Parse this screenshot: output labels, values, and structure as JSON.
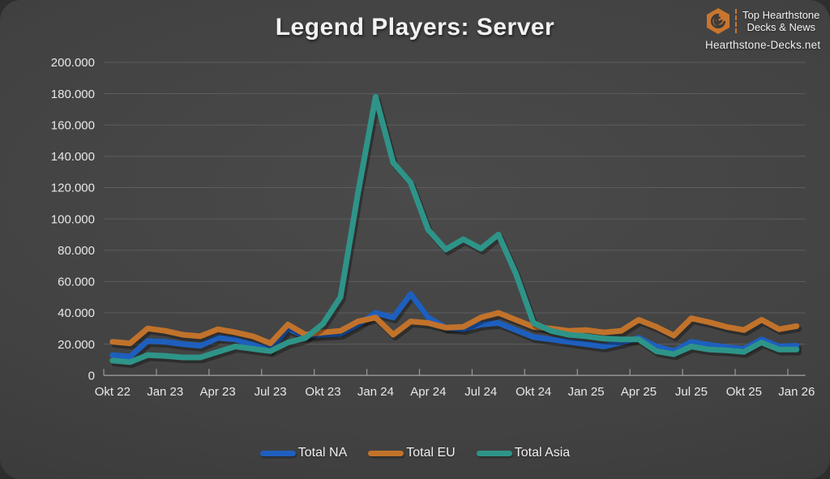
{
  "header": {
    "title": "Legend Players: Server",
    "logo": {
      "icon": "hearthstone-swirl-hexagon-icon",
      "line1": "Top Hearthstone",
      "line2": "Decks & News",
      "site": "Hearthstone-Decks.net",
      "accent": "#c9752e"
    }
  },
  "chart_data": {
    "type": "line",
    "title": "Legend Players: Server",
    "xlabel": "",
    "ylabel": "",
    "ylim": [
      0,
      200000
    ],
    "y_tick_step": 20000,
    "y_tick_labels": [
      "0",
      "20.000",
      "40.000",
      "60.000",
      "80.000",
      "100.000",
      "120.000",
      "140.000",
      "160.000",
      "180.000",
      "200.000"
    ],
    "x_tick_label_every": 3,
    "x_tick_labels_shown": [
      "Okt 22",
      "Jan 23",
      "Apr 23",
      "Jul 23",
      "Okt 23",
      "Jan 24",
      "Apr 24",
      "Jul 24",
      "Okt 24",
      "Jan 25",
      "Apr 25",
      "Jul 25",
      "Okt 25",
      "Jan 26"
    ],
    "grid": true,
    "legend_position": "bottom",
    "categories": [
      "Okt 22",
      "Nov 22",
      "Dez 22",
      "Jan 23",
      "Feb 23",
      "Mär 23",
      "Apr 23",
      "Mai 23",
      "Jun 23",
      "Jul 23",
      "Aug 23",
      "Sep 23",
      "Okt 23",
      "Nov 23",
      "Dez 23",
      "Jan 24",
      "Feb 24",
      "Mär 24",
      "Apr 24",
      "Mai 24",
      "Jun 24",
      "Jul 24",
      "Aug 24",
      "Sep 24",
      "Okt 24",
      "Nov 24",
      "Dez 24",
      "Jan 25",
      "Feb 25",
      "Mär 25",
      "Apr 25",
      "Mai 25",
      "Jun 25",
      "Jul 25",
      "Aug 25",
      "Sep 25",
      "Okt 25",
      "Nov 25",
      "Dez 25",
      "Jan 26"
    ],
    "series": [
      {
        "name": "Total NA",
        "color": "#1e5fbe",
        "values": [
          13000,
          12000,
          22000,
          21500,
          20000,
          19000,
          24000,
          23000,
          19500,
          16500,
          30000,
          25000,
          26000,
          26500,
          32500,
          40000,
          37000,
          52000,
          37000,
          30500,
          29500,
          32500,
          33500,
          29000,
          24500,
          23000,
          21500,
          20000,
          18500,
          21000,
          24000,
          18500,
          15500,
          21500,
          19500,
          18000,
          17000,
          23000,
          18500,
          19000
        ]
      },
      {
        "name": "Total EU",
        "color": "#c1722b",
        "values": [
          21500,
          20500,
          30000,
          28500,
          26000,
          25000,
          29500,
          27500,
          25000,
          20500,
          32500,
          26000,
          27500,
          28500,
          34500,
          37000,
          26000,
          34500,
          33500,
          30500,
          31000,
          37000,
          40000,
          35500,
          31000,
          30000,
          28500,
          29000,
          27500,
          28500,
          35500,
          31000,
          25500,
          36500,
          34000,
          31000,
          29000,
          35500,
          29500,
          31500
        ]
      },
      {
        "name": "Total Asia",
        "color": "#2e9488",
        "values": [
          9500,
          8500,
          13000,
          12500,
          11500,
          11500,
          15000,
          18500,
          17000,
          15500,
          21000,
          24000,
          33000,
          50000,
          117000,
          178000,
          136000,
          123000,
          93000,
          80500,
          87000,
          81000,
          90000,
          65000,
          33500,
          28500,
          26000,
          25000,
          23500,
          23000,
          23000,
          15500,
          13500,
          18500,
          16500,
          16000,
          15000,
          21000,
          16500,
          16500
        ]
      }
    ]
  },
  "style": {
    "grid_color": "#5d5d5d",
    "axis_color": "#9a9a9a",
    "tick_label_color": "#e8e8e8"
  }
}
